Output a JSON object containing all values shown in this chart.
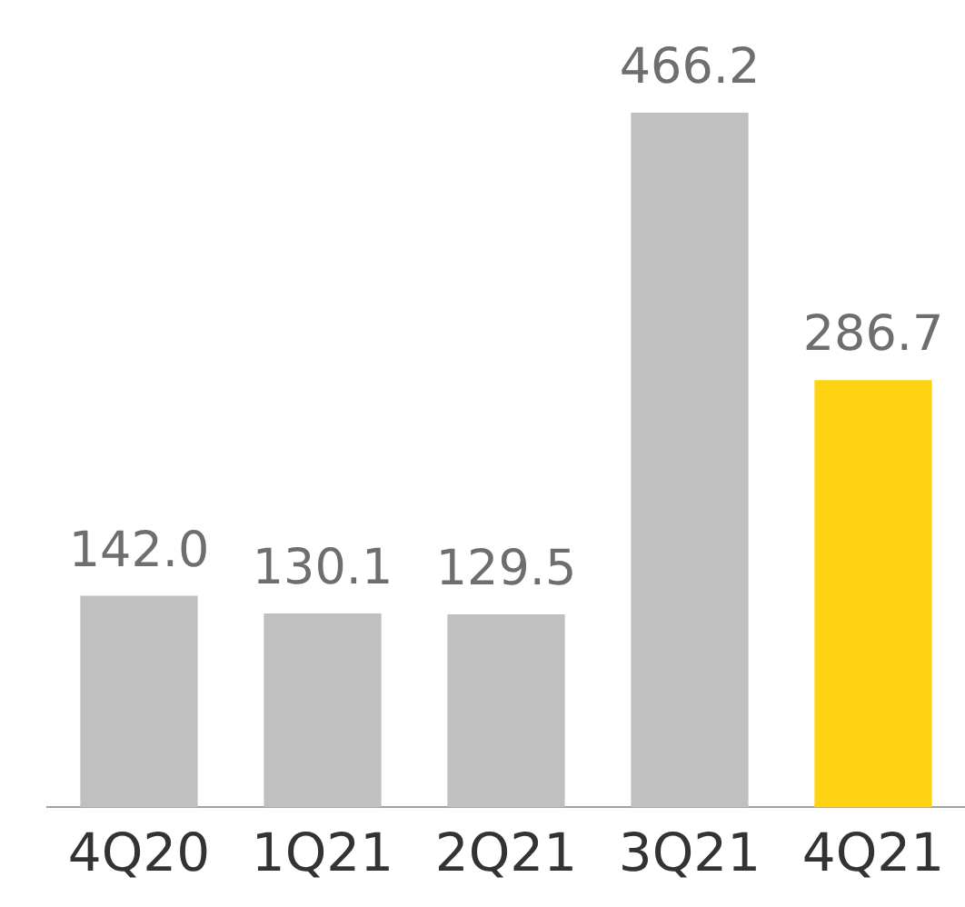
{
  "chart_data": {
    "type": "bar",
    "relative": false,
    "categories": [
      "4Q20",
      "1Q21",
      "2Q21",
      "3Q21",
      "4Q21"
    ],
    "values": [
      142.0,
      130.1,
      129.5,
      466.2,
      286.7
    ],
    "colors": [
      "#c0c0c0",
      "#c0c0c0",
      "#c0c0c0",
      "#c0c0c0",
      "#ffd212"
    ],
    "value_labels": [
      "142.0",
      "130.1",
      "129.5",
      "466.2",
      "286.7"
    ],
    "grid": false,
    "legend": false
  }
}
